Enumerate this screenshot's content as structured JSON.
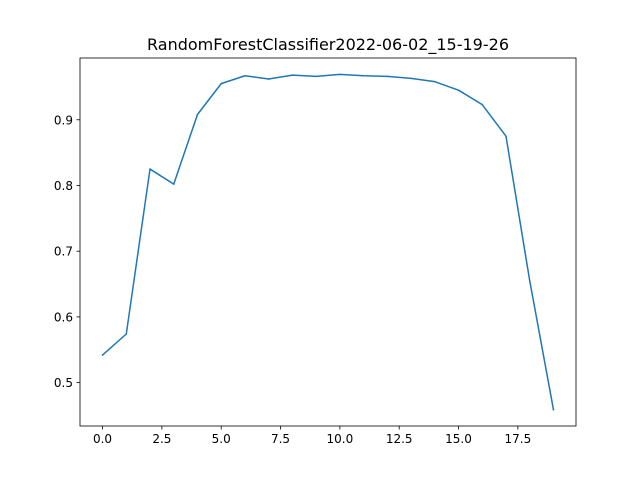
{
  "chart_data": {
    "type": "line",
    "title": "RandomForestClassifier2022-06-02_15-19-26",
    "xlabel": "",
    "ylabel": "",
    "xlim": [
      -0.95,
      19.95
    ],
    "ylim": [
      0.434,
      0.994
    ],
    "xticks": [
      0.0,
      2.5,
      5.0,
      7.5,
      10.0,
      12.5,
      15.0,
      17.5
    ],
    "xtick_labels": [
      "0.0",
      "2.5",
      "5.0",
      "7.5",
      "10.0",
      "12.5",
      "15.0",
      "17.5"
    ],
    "yticks": [
      0.5,
      0.6,
      0.7,
      0.8,
      0.9
    ],
    "ytick_labels": [
      "0.5",
      "0.6",
      "0.7",
      "0.8",
      "0.9"
    ],
    "grid": false,
    "legend": "none",
    "line_color": "#1f77b4",
    "x": [
      0,
      1,
      2,
      3,
      4,
      5,
      6,
      7,
      8,
      9,
      10,
      11,
      12,
      13,
      14,
      15,
      16,
      17,
      18,
      19
    ],
    "series": [
      {
        "values": [
          0.542,
          0.574,
          0.825,
          0.802,
          0.908,
          0.955,
          0.967,
          0.962,
          0.968,
          0.966,
          0.969,
          0.967,
          0.966,
          0.963,
          0.958,
          0.945,
          0.923,
          0.875,
          0.655,
          0.459
        ]
      }
    ]
  }
}
